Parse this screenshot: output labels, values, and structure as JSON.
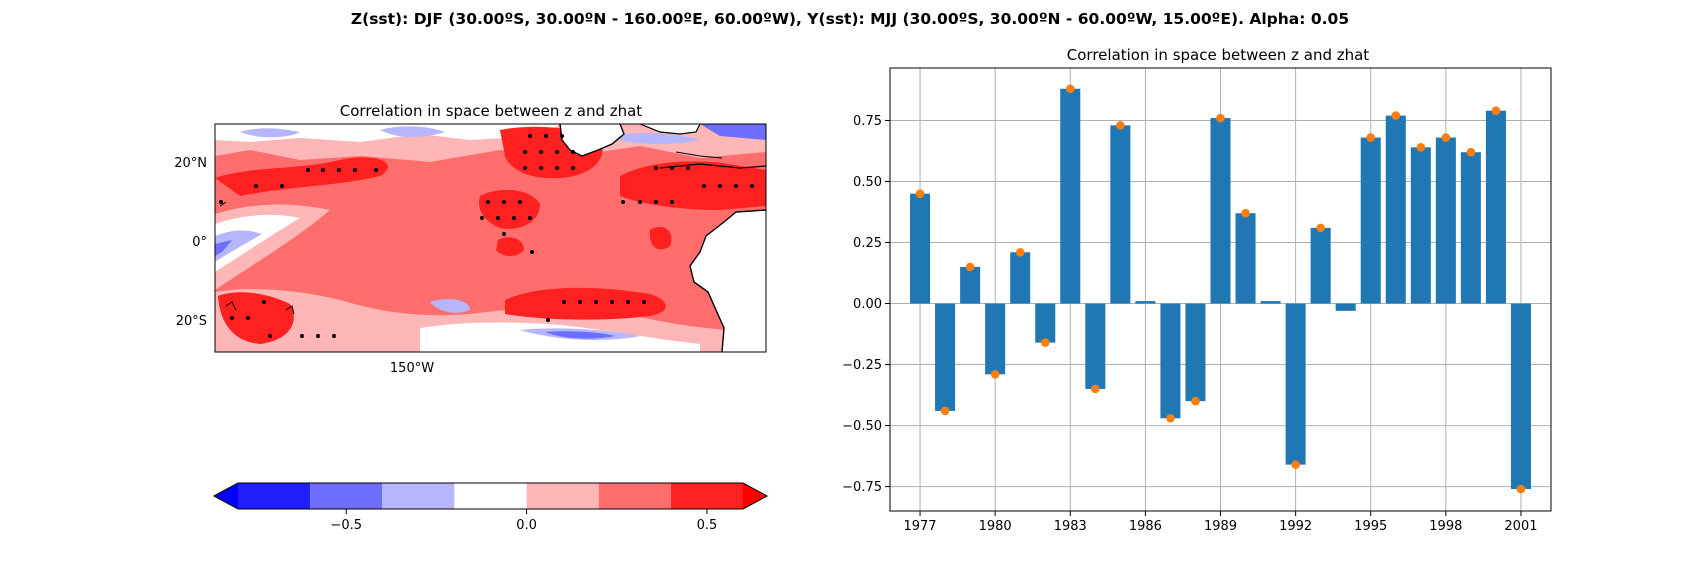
{
  "suptitle": "Z(sst): DJF (30.00ºS, 30.00ºN - 160.00ºE, 60.00ºW), Y(sst): MJJ (30.00ºS, 30.00ºN - 60.00ºW, 15.00ºE). Alpha: 0.05",
  "map": {
    "title": "Correlation in space between z and zhat",
    "lat_ticks": [
      "20°N",
      "0°",
      "20°S"
    ],
    "lon_ticks": [
      "150°W"
    ],
    "colorbar": {
      "levels": [
        -0.8,
        -0.6,
        -0.4,
        -0.2,
        0.0,
        0.2,
        0.4,
        0.6
      ],
      "colors": [
        "#2020ff",
        "#6d6dff",
        "#b6b6ff",
        "#ffffff",
        "#ffb6b6",
        "#ff6d6d",
        "#ff2020"
      ],
      "extend_low_color": "#0000ff",
      "extend_high_color": "#ff0000",
      "ticks": [
        {
          "value": -0.5,
          "label": "−0.5"
        },
        {
          "value": 0.0,
          "label": "0.0"
        },
        {
          "value": 0.5,
          "label": "0.5"
        }
      ]
    }
  },
  "chart_data": {
    "type": "bar",
    "title": "Correlation in space between z and zhat",
    "x": [
      1977,
      1978,
      1979,
      1980,
      1981,
      1982,
      1983,
      1984,
      1985,
      1986,
      1987,
      1988,
      1989,
      1990,
      1991,
      1992,
      1993,
      1994,
      1995,
      1996,
      1997,
      1998,
      1999,
      2000,
      2001
    ],
    "values": [
      0.45,
      -0.44,
      0.15,
      -0.29,
      0.21,
      -0.16,
      0.88,
      -0.35,
      0.73,
      0.01,
      -0.47,
      -0.4,
      0.76,
      0.37,
      0.01,
      -0.66,
      0.31,
      -0.03,
      0.68,
      0.77,
      0.64,
      0.68,
      0.62,
      0.79,
      -0.76
    ],
    "points": [
      0.45,
      -0.44,
      0.15,
      -0.29,
      0.21,
      -0.16,
      0.88,
      -0.35,
      0.73,
      null,
      -0.47,
      -0.4,
      0.76,
      0.37,
      null,
      -0.66,
      0.31,
      null,
      0.68,
      0.77,
      0.64,
      0.68,
      0.62,
      0.79,
      -0.76
    ],
    "x_ticks": [
      1977,
      1980,
      1983,
      1986,
      1989,
      1992,
      1995,
      1998,
      2001
    ],
    "y_ticks": [
      -0.75,
      -0.5,
      -0.25,
      0.0,
      0.25,
      0.5,
      0.75
    ],
    "y_tick_labels": [
      "−0.75",
      "−0.50",
      "−0.25",
      "0.00",
      "0.25",
      "0.50",
      "0.75"
    ],
    "xlim": [
      1975.8,
      2002.2
    ],
    "ylim": [
      -0.85,
      0.965
    ],
    "xlabel": "",
    "ylabel": "",
    "bar_color": "#1f77b4",
    "point_color": "#ff7f0e",
    "grid": true
  }
}
